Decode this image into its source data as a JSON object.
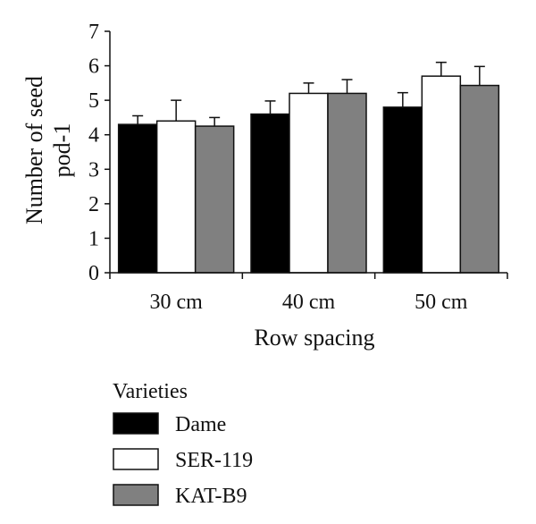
{
  "chart_data": {
    "type": "bar",
    "title": "",
    "xlabel": "Row spacing",
    "ylabel": "Number of seed pod-1",
    "ylim": [
      0,
      7
    ],
    "yticks": [
      0,
      1,
      2,
      3,
      4,
      5,
      6,
      7
    ],
    "categories": [
      "30 cm",
      "40 cm",
      "50 cm"
    ],
    "grid": false,
    "legend": {
      "title": "Varieties",
      "position": "bottom-left"
    },
    "series": [
      {
        "name": "Dame",
        "color": "#000000",
        "values": [
          4.3,
          4.6,
          4.8
        ],
        "errors": [
          0.25,
          0.38,
          0.42
        ]
      },
      {
        "name": "SER-119",
        "color": "#ffffff",
        "values": [
          4.4,
          5.2,
          5.7
        ],
        "errors": [
          0.6,
          0.3,
          0.4
        ]
      },
      {
        "name": "KAT-B9",
        "color": "#808080",
        "values": [
          4.25,
          5.2,
          5.43
        ],
        "errors": [
          0.25,
          0.4,
          0.55
        ]
      }
    ]
  }
}
